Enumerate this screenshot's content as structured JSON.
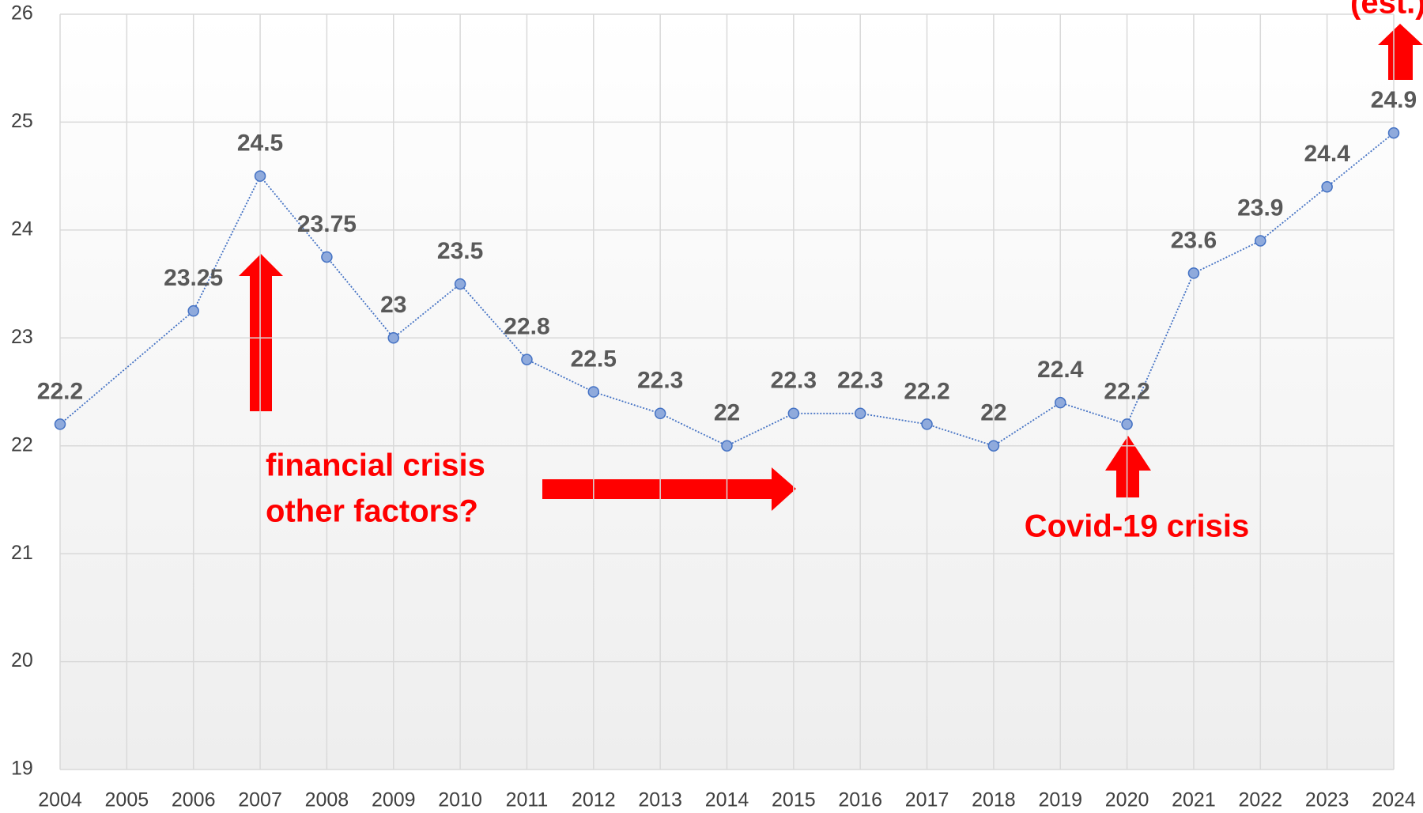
{
  "chart_data": {
    "type": "line",
    "x": [
      2004,
      2006,
      2007,
      2008,
      2009,
      2010,
      2011,
      2012,
      2013,
      2014,
      2015,
      2016,
      2017,
      2018,
      2019,
      2020,
      2021,
      2022,
      2023,
      2024
    ],
    "series": [
      {
        "color": "#4472c4",
        "values": [
          22.2,
          23.25,
          24.5,
          23.75,
          23,
          23.5,
          22.8,
          22.5,
          22.3,
          22,
          22.3,
          22.3,
          22.2,
          22,
          22.4,
          22.2,
          23.6,
          23.9,
          24.4,
          24.9
        ]
      }
    ],
    "xlim": [
      2004,
      2024
    ],
    "xticks": [
      2004,
      2005,
      2006,
      2007,
      2008,
      2009,
      2010,
      2011,
      2012,
      2013,
      2014,
      2015,
      2016,
      2017,
      2018,
      2019,
      2020,
      2021,
      2022,
      2023,
      2024
    ],
    "ylim": [
      19,
      26
    ],
    "yticks": [
      19,
      20,
      21,
      22,
      23,
      24,
      25,
      26
    ],
    "grid": true,
    "annotations": [
      "financial crisis",
      "other factors?",
      "Covid-19 crisis",
      "(est.)"
    ]
  }
}
